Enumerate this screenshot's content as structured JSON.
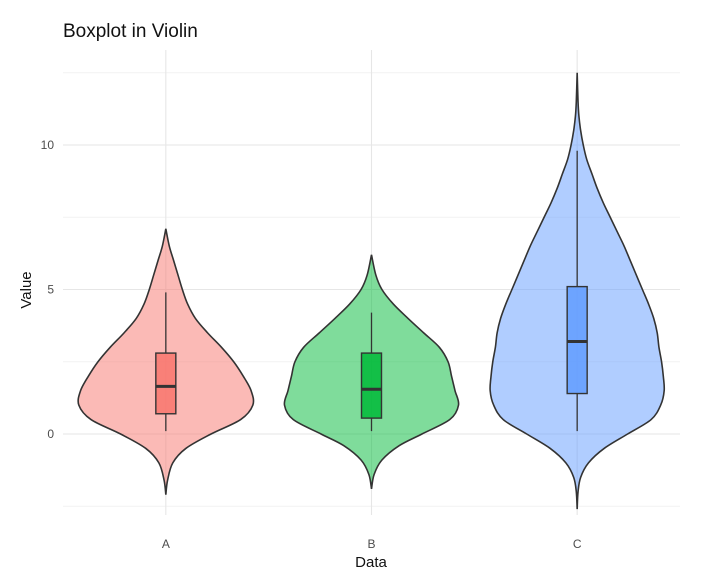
{
  "chart_data": {
    "type": "violin",
    "title": "Boxplot in Violin",
    "xlabel": "Data",
    "ylabel": "Value",
    "ylim": [
      -2.6,
      12.6
    ],
    "yticks": [
      0,
      5,
      10
    ],
    "ytick_labels": [
      "0",
      "5",
      "10"
    ],
    "grid": true,
    "categories": [
      "A",
      "B",
      "C"
    ],
    "series": [
      {
        "category": "A",
        "color": "#F8766D",
        "violin_range": [
          -2.1,
          7.1
        ],
        "density": [
          [
            -2.1,
            0.0
          ],
          [
            -1.6,
            0.02
          ],
          [
            -1.0,
            0.08
          ],
          [
            -0.5,
            0.23
          ],
          [
            0.0,
            0.52
          ],
          [
            0.5,
            0.86
          ],
          [
            1.0,
            1.0
          ],
          [
            1.5,
            0.98
          ],
          [
            2.0,
            0.89
          ],
          [
            2.5,
            0.78
          ],
          [
            3.0,
            0.64
          ],
          [
            3.5,
            0.48
          ],
          [
            4.0,
            0.34
          ],
          [
            4.5,
            0.25
          ],
          [
            5.0,
            0.19
          ],
          [
            5.5,
            0.14
          ],
          [
            6.0,
            0.09
          ],
          [
            6.5,
            0.04
          ],
          [
            7.1,
            0.0
          ]
        ],
        "box": {
          "whisker_low": 0.1,
          "q1": 0.7,
          "median": 1.65,
          "q3": 2.8,
          "whisker_high": 4.9
        }
      },
      {
        "category": "B",
        "color": "#00BA38",
        "violin_range": [
          -1.9,
          6.2
        ],
        "density": [
          [
            -1.9,
            0.0
          ],
          [
            -1.4,
            0.03
          ],
          [
            -0.9,
            0.12
          ],
          [
            -0.4,
            0.32
          ],
          [
            0.0,
            0.58
          ],
          [
            0.5,
            0.9
          ],
          [
            1.0,
            1.0
          ],
          [
            1.5,
            0.96
          ],
          [
            2.0,
            0.92
          ],
          [
            2.5,
            0.88
          ],
          [
            3.0,
            0.78
          ],
          [
            3.5,
            0.6
          ],
          [
            4.0,
            0.42
          ],
          [
            4.5,
            0.25
          ],
          [
            5.0,
            0.12
          ],
          [
            5.5,
            0.05
          ],
          [
            6.2,
            0.0
          ]
        ],
        "box": {
          "whisker_low": 0.1,
          "q1": 0.55,
          "median": 1.55,
          "q3": 2.8,
          "whisker_high": 4.2
        }
      },
      {
        "category": "C",
        "color": "#619CFF",
        "violin_range": [
          -2.6,
          12.5
        ],
        "density": [
          [
            -2.6,
            0.0
          ],
          [
            -2.0,
            0.01
          ],
          [
            -1.5,
            0.04
          ],
          [
            -1.0,
            0.13
          ],
          [
            -0.5,
            0.31
          ],
          [
            0.0,
            0.58
          ],
          [
            0.5,
            0.85
          ],
          [
            1.0,
            0.96
          ],
          [
            1.5,
            1.0
          ],
          [
            2.0,
            0.99
          ],
          [
            2.5,
            0.97
          ],
          [
            3.0,
            0.94
          ],
          [
            3.5,
            0.92
          ],
          [
            4.0,
            0.88
          ],
          [
            4.5,
            0.82
          ],
          [
            5.0,
            0.75
          ],
          [
            5.5,
            0.68
          ],
          [
            6.0,
            0.61
          ],
          [
            6.5,
            0.54
          ],
          [
            7.0,
            0.46
          ],
          [
            7.5,
            0.38
          ],
          [
            8.0,
            0.3
          ],
          [
            8.5,
            0.23
          ],
          [
            9.0,
            0.17
          ],
          [
            9.5,
            0.11
          ],
          [
            10.0,
            0.07
          ],
          [
            10.5,
            0.04
          ],
          [
            11.0,
            0.02
          ],
          [
            11.5,
            0.01
          ],
          [
            12.5,
            0.0
          ]
        ],
        "box": {
          "whisker_low": 0.1,
          "q1": 1.4,
          "median": 3.2,
          "q3": 5.1,
          "whisker_high": 9.8
        }
      }
    ]
  }
}
